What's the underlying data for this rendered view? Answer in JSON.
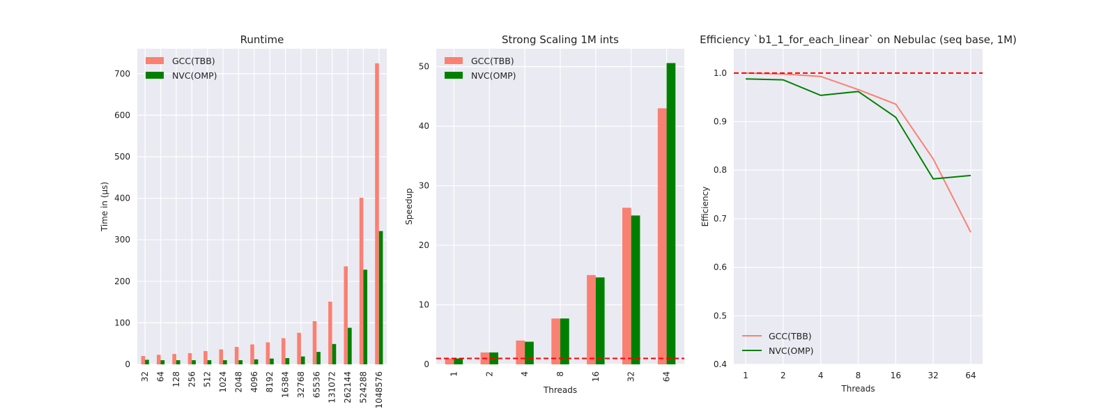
{
  "chart_data": [
    {
      "type": "bar",
      "title": "Runtime",
      "xlabel": "",
      "ylabel": "Time in (µs)",
      "categories": [
        "32",
        "64",
        "128",
        "256",
        "512",
        "1024",
        "2048",
        "4096",
        "8192",
        "16384",
        "32768",
        "65536",
        "131072",
        "262144",
        "524288",
        "1048576"
      ],
      "series": [
        {
          "name": "GCC(TBB)",
          "color": "#fa8072",
          "values": [
            20,
            23,
            25,
            27,
            32,
            36,
            42,
            48,
            53,
            63,
            76,
            104,
            151,
            236,
            401,
            725
          ]
        },
        {
          "name": "NVC(OMP)",
          "color": "#008000",
          "values": [
            11,
            10,
            10,
            10,
            10,
            10,
            10,
            12,
            14,
            15,
            19,
            30,
            49,
            88,
            228,
            321
          ]
        }
      ],
      "ylim": [
        0,
        760
      ],
      "yticks": [
        "0",
        "100",
        "200",
        "300",
        "400",
        "500",
        "600",
        "700"
      ],
      "legend": "top-left",
      "grid": true
    },
    {
      "type": "bar",
      "title": "Strong Scaling 1M ints",
      "xlabel": "Threads",
      "ylabel": "Speedup",
      "categories": [
        "1",
        "2",
        "4",
        "8",
        "16",
        "32",
        "64"
      ],
      "series": [
        {
          "name": "GCC(TBB)",
          "color": "#fa8072",
          "values": [
            1.0,
            2.0,
            4.0,
            7.7,
            15.0,
            26.3,
            43.0
          ]
        },
        {
          "name": "NVC(OMP)",
          "color": "#008000",
          "values": [
            1.0,
            2.0,
            3.8,
            7.7,
            14.6,
            25.0,
            50.6
          ]
        }
      ],
      "reference_line": {
        "y": 1,
        "color": "#ff0000",
        "style": "dashed"
      },
      "ylim": [
        0,
        53
      ],
      "yticks": [
        "0",
        "10",
        "20",
        "30",
        "40",
        "50"
      ],
      "legend": "top-left",
      "grid": true
    },
    {
      "type": "line",
      "title": "Efficiency `b1_1_for_each_linear` on Nebulac (seq base, 1M)",
      "xlabel": "Threads",
      "ylabel": "Efficiency",
      "x": [
        "1",
        "2",
        "4",
        "8",
        "16",
        "32",
        "64"
      ],
      "series": [
        {
          "name": "GCC(TBB)",
          "color": "#fa8072",
          "values": [
            1.0,
            0.998,
            0.993,
            0.966,
            0.936,
            0.823,
            0.672
          ]
        },
        {
          "name": "NVC(OMP)",
          "color": "#008000",
          "values": [
            0.988,
            0.986,
            0.954,
            0.962,
            0.909,
            0.782,
            0.789
          ]
        }
      ],
      "reference_line": {
        "y": 1.0,
        "color": "#ff0000",
        "style": "dashed"
      },
      "ylim": [
        0.4,
        1.05
      ],
      "yticks": [
        "0.4",
        "0.5",
        "0.6",
        "0.7",
        "0.8",
        "0.9",
        "1.0"
      ],
      "legend": "bottom-left",
      "grid": true
    }
  ]
}
